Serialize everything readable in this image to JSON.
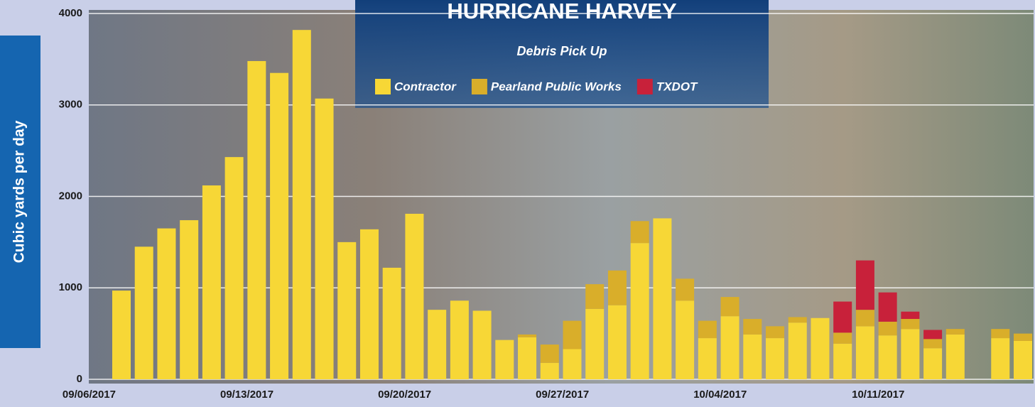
{
  "chart_data": {
    "type": "stacked-bar",
    "title": "HURRICANE HARVEY",
    "subtitle": "Debris Pick Up",
    "y_label": "Cubic yards per day",
    "categories": [
      "09/06/2017",
      null,
      null,
      null,
      null,
      null,
      null,
      "09/13/2017",
      null,
      null,
      null,
      null,
      null,
      null,
      "09/20/2017",
      null,
      null,
      null,
      null,
      null,
      null,
      "09/27/2017",
      null,
      null,
      null,
      null,
      null,
      null,
      "10/04/2017",
      null,
      null,
      null,
      null,
      null,
      null,
      "10/11/2017",
      null,
      null,
      null,
      null,
      null
    ],
    "series": [
      {
        "name": "Contractor",
        "color": "#f7d736",
        "values": [
          970,
          1450,
          1650,
          1740,
          2120,
          2430,
          3480,
          3350,
          3820,
          3070,
          1500,
          1640,
          1220,
          1810,
          760,
          860,
          750,
          430,
          460,
          180,
          330,
          770,
          810,
          1490,
          1760,
          860,
          450,
          690,
          490,
          450,
          620,
          670,
          390,
          580,
          480,
          550,
          340,
          490,
          0,
          450,
          420
        ]
      },
      {
        "name": "Pearland Public Works",
        "color": "#d9ae2a",
        "values": [
          0,
          0,
          0,
          0,
          0,
          0,
          0,
          0,
          0,
          0,
          0,
          0,
          0,
          0,
          0,
          0,
          0,
          0,
          30,
          200,
          310,
          270,
          380,
          240,
          0,
          240,
          190,
          210,
          170,
          130,
          60,
          0,
          120,
          180,
          150,
          110,
          100,
          60,
          0,
          100,
          80
        ]
      },
      {
        "name": "TXDOT",
        "color": "#c8213a",
        "values": [
          0,
          0,
          0,
          0,
          0,
          0,
          0,
          0,
          0,
          0,
          0,
          0,
          0,
          0,
          0,
          0,
          0,
          0,
          0,
          0,
          0,
          0,
          0,
          0,
          0,
          0,
          0,
          0,
          0,
          0,
          0,
          0,
          340,
          540,
          320,
          80,
          100,
          0,
          0,
          0,
          0
        ]
      }
    ],
    "ylim": [
      0,
      4000
    ],
    "yticks": [
      0,
      1000,
      2000,
      3000,
      4000
    ],
    "grid": true
  }
}
